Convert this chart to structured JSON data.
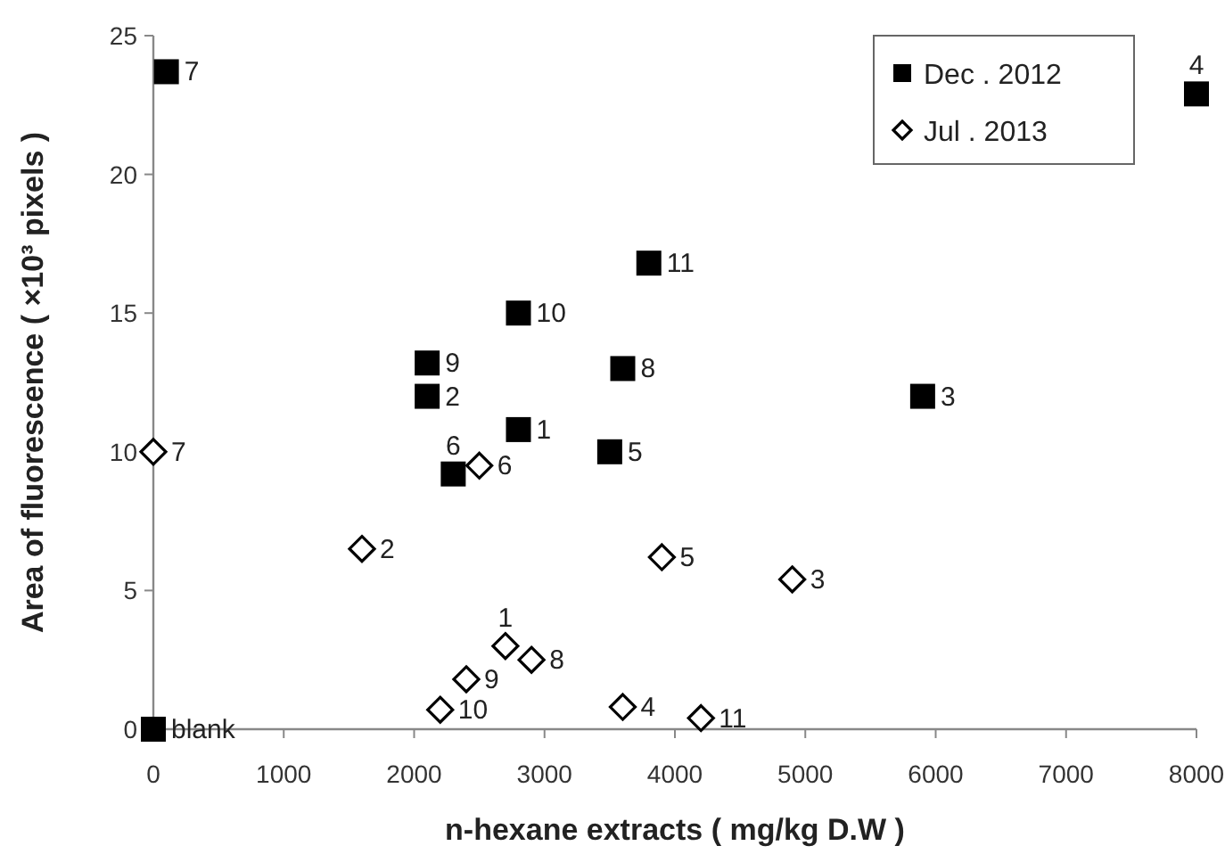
{
  "chart_data": {
    "type": "scatter",
    "xlabel": "n-hexane extracts ( mg/kg D.W )",
    "ylabel": "Area of fluorescence ( ×10³ pixels )",
    "xlim": [
      0,
      8000
    ],
    "xticks": [
      0,
      1000,
      2000,
      3000,
      4000,
      5000,
      6000,
      7000,
      8000
    ],
    "ylim": [
      0,
      25
    ],
    "yticks": [
      0,
      5,
      10,
      15,
      20,
      25
    ],
    "grid": false,
    "legend": "top right",
    "series": [
      {
        "name": "Dec . 2012",
        "color": "#000000",
        "marker": "square",
        "x": [
          2800,
          2100,
          5900,
          8000,
          3500,
          2300,
          100,
          3600,
          2100,
          2800,
          3800,
          0
        ],
        "values": [
          10.8,
          12,
          12,
          22.9,
          10,
          9.2,
          23.7,
          13,
          13.2,
          15,
          16.8,
          0
        ]
      },
      {
        "name": "Jul . 2013",
        "color": "#000000",
        "marker": "diamond",
        "x": [
          2700,
          1600,
          4900,
          3600,
          3900,
          2500,
          0,
          2900,
          2400,
          2200,
          4200
        ],
        "values": [
          3,
          6.5,
          5.4,
          0.8,
          6.2,
          9.5,
          10,
          2.5,
          1.8,
          0.7,
          0.4
        ]
      }
    ],
    "annotations": [
      {
        "text": "1",
        "x": 2800,
        "y": 10.8
      },
      {
        "text": "2",
        "x": 2100,
        "y": 12
      },
      {
        "text": "3",
        "x": 5900,
        "y": 12
      },
      {
        "text": "4",
        "x": 8000,
        "y": 22.9
      },
      {
        "text": "5",
        "x": 3500,
        "y": 10
      },
      {
        "text": "6",
        "x": 2300,
        "y": 9.2
      },
      {
        "text": "7",
        "x": 100,
        "y": 23.7
      },
      {
        "text": "8",
        "x": 3600,
        "y": 13
      },
      {
        "text": "9",
        "x": 2100,
        "y": 13.2
      },
      {
        "text": "10",
        "x": 2800,
        "y": 15
      },
      {
        "text": "11",
        "x": 3800,
        "y": 16.8
      },
      {
        "text": "blank",
        "x": 0,
        "y": 0
      },
      {
        "text": "1",
        "x": 2700,
        "y": 3
      },
      {
        "text": "2",
        "x": 1600,
        "y": 6.5
      },
      {
        "text": "3",
        "x": 4900,
        "y": 5.4
      },
      {
        "text": "4",
        "x": 3600,
        "y": 0.8
      },
      {
        "text": "5",
        "x": 3900,
        "y": 6.2
      },
      {
        "text": "6",
        "x": 2500,
        "y": 9.5
      },
      {
        "text": "7",
        "x": 0,
        "y": 10
      },
      {
        "text": "8",
        "x": 2900,
        "y": 2.5
      },
      {
        "text": "9",
        "x": 2400,
        "y": 1.8
      },
      {
        "text": "10",
        "x": 2200,
        "y": 0.7
      },
      {
        "text": "11",
        "x": 4200,
        "y": 0.4
      }
    ]
  }
}
